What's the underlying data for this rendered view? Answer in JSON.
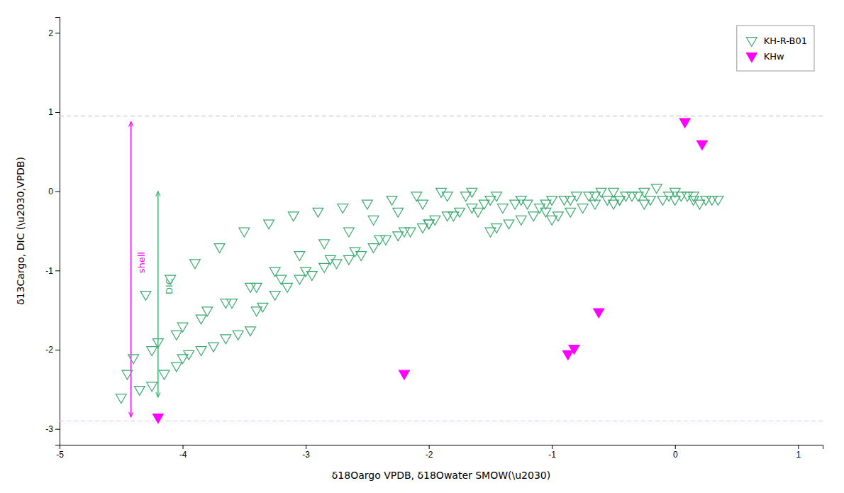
{
  "chart_data": {
    "type": "scatter",
    "x_label": "δ18Oargo VPDB, δ18Owater SMOW(\\u2030)",
    "y_label": "δ13Cargo, DIC (\\u2030,VPDB)",
    "xlim": [
      -5,
      1.2
    ],
    "ylim": [
      -3.2,
      2.2
    ],
    "xticks": [
      -5,
      -4,
      -3,
      -2,
      -1,
      0,
      1
    ],
    "yticks": [
      -3,
      -2,
      -1,
      0,
      1,
      2
    ],
    "grid": false,
    "legend": "upper right",
    "series": [
      {
        "name": "KH-R-B01",
        "color": "#3aaa6f",
        "marker": "triangle-down-open",
        "x": [
          -4.5,
          -4.35,
          -4.25,
          -4.15,
          -4.05,
          -4.0,
          -3.95,
          -3.85,
          -3.75,
          -3.65,
          -3.55,
          -3.45,
          -3.4,
          -3.35,
          -3.25,
          -3.15,
          -3.05,
          -2.95,
          -2.85,
          -2.75,
          -2.65,
          -2.55,
          -2.45,
          -2.35,
          -2.25,
          -2.15,
          -2.05,
          -2.0,
          -1.95,
          -1.85,
          -1.75,
          -1.65,
          -1.55,
          -1.5,
          -1.45,
          -1.35,
          -1.25,
          -1.15,
          -1.05,
          -1.0,
          -0.95,
          -0.85,
          -0.75,
          -0.65,
          -0.55,
          -0.5,
          -0.45,
          -0.35,
          -0.25,
          -0.15,
          0.0,
          0.05,
          0.15,
          0.25,
          0.35,
          -4.3,
          -4.1,
          -3.9,
          -3.7,
          -3.5,
          -3.3,
          -3.1,
          -2.9,
          -2.7,
          -2.5,
          -2.3,
          -2.1,
          -1.9,
          -1.7,
          -1.5,
          -1.3,
          -1.1,
          -0.9,
          -0.7,
          -0.5,
          -0.3,
          -0.1,
          0.1,
          0.3,
          -4.4,
          -4.2,
          -4.0,
          -3.8,
          -3.6,
          -3.4,
          -3.2,
          -3.0,
          -2.8,
          -2.6,
          -2.4,
          -2.2,
          -2.0,
          -1.8,
          -1.6,
          -1.4,
          -1.2,
          -1.0,
          -0.8,
          -0.6,
          -0.4,
          -0.2,
          0.0,
          0.2,
          -4.45,
          -4.25,
          -4.05,
          -3.85,
          -3.65,
          -3.45,
          -3.25,
          -3.05,
          -2.85,
          -2.65,
          -2.45,
          -2.25,
          -2.05,
          -1.85,
          -1.65,
          -1.45,
          -1.25,
          -1.05,
          -0.85,
          -0.65,
          -0.45,
          -0.25,
          -0.05,
          0.15
        ],
        "values": [
          -2.6,
          -2.5,
          -2.45,
          -2.3,
          -2.2,
          -2.1,
          -2.05,
          -2.0,
          -1.95,
          -1.85,
          -1.8,
          -1.75,
          -1.5,
          -1.45,
          -1.3,
          -1.2,
          -1.1,
          -1.05,
          -0.95,
          -0.9,
          -0.85,
          -0.8,
          -0.7,
          -0.6,
          -0.55,
          -0.5,
          -0.45,
          -0.4,
          -0.35,
          -0.3,
          -0.25,
          -0.2,
          -0.15,
          -0.5,
          -0.45,
          -0.4,
          -0.35,
          -0.3,
          -0.25,
          -0.35,
          -0.3,
          -0.25,
          -0.2,
          -0.15,
          -0.1,
          -0.15,
          -0.1,
          -0.05,
          0.0,
          0.05,
          0.0,
          -0.05,
          -0.05,
          -0.1,
          -0.1,
          -1.3,
          -1.1,
          -0.9,
          -0.7,
          -0.5,
          -0.4,
          -0.3,
          -0.25,
          -0.2,
          -0.15,
          -0.1,
          -0.05,
          0.0,
          -0.05,
          -0.1,
          -0.15,
          -0.2,
          -0.1,
          -0.05,
          0.0,
          -0.05,
          -0.1,
          -0.05,
          -0.1,
          -2.1,
          -1.9,
          -1.7,
          -1.5,
          -1.4,
          -1.2,
          -1.1,
          -1.0,
          -0.85,
          -0.75,
          -0.6,
          -0.5,
          -0.4,
          -0.3,
          -0.25,
          -0.2,
          -0.15,
          -0.1,
          -0.05,
          0.0,
          -0.05,
          -0.1,
          -0.1,
          -0.15,
          -2.3,
          -2.0,
          -1.8,
          -1.6,
          -1.4,
          -1.2,
          -1.0,
          -0.8,
          -0.65,
          -0.5,
          -0.35,
          -0.25,
          -0.15,
          -0.05,
          0.0,
          -0.05,
          -0.1,
          -0.15,
          -0.1,
          -0.05,
          -0.1,
          -0.15,
          -0.05,
          -0.1
        ]
      },
      {
        "name": "KHw",
        "color": "#ff00ff",
        "marker": "triangle-down",
        "x": [
          -4.2,
          -2.2,
          -0.87,
          -0.82,
          -0.62,
          0.08,
          0.22
        ],
        "values": [
          -2.85,
          -2.3,
          -2.05,
          -1.98,
          -1.52,
          0.88,
          0.6
        ]
      }
    ],
    "hlines": [
      {
        "y": 0.95,
        "color": "#cccccc",
        "line_style": "dashed"
      },
      {
        "y": -2.9,
        "color": "#ffbbcc",
        "line_style": "dashed"
      }
    ],
    "annotations": [
      {
        "text": "shell",
        "x": -4.37,
        "y": -0.9,
        "color": "#ff00ff",
        "arrow_x": -4.42,
        "arrow_y": [
          -2.85,
          0.88
        ]
      },
      {
        "text": "DIC",
        "x": -4.15,
        "y": -1.2,
        "color": "#3aaa6f",
        "arrow_x": -4.2,
        "arrow_y": [
          -2.6,
          0.0
        ]
      }
    ]
  }
}
